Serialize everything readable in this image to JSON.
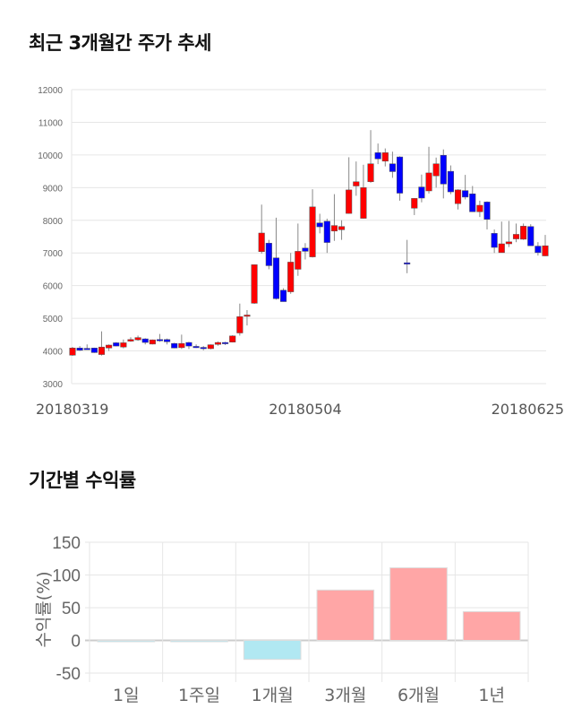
{
  "section1": {
    "title": "최근 3개월간 주가 추세"
  },
  "section2": {
    "title": "기간별 수익률"
  },
  "chart_data": [
    {
      "type": "candlestick",
      "title": "최근 3개월간 주가 추세",
      "ylim": [
        3000,
        12000
      ],
      "yticks": [
        3000,
        4000,
        5000,
        6000,
        7000,
        8000,
        9000,
        10000,
        11000,
        12000
      ],
      "xtick_labels": [
        {
          "index": 0,
          "label": "20180319"
        },
        {
          "index": 32,
          "label": "20180504"
        },
        {
          "index": 65,
          "label": "20180625"
        }
      ],
      "grid": true,
      "colors": {
        "up": "#ff0000",
        "down": "#0000ff"
      },
      "ohlc": [
        [
          3870,
          4120,
          3850,
          4090
        ],
        [
          4090,
          4150,
          4000,
          4020
        ],
        [
          4080,
          4200,
          4040,
          4060
        ],
        [
          4090,
          4100,
          3940,
          3950
        ],
        [
          3890,
          4600,
          3860,
          4120
        ],
        [
          4090,
          4200,
          4000,
          4180
        ],
        [
          4250,
          4270,
          4140,
          4150
        ],
        [
          4120,
          4350,
          4080,
          4250
        ],
        [
          4300,
          4420,
          4280,
          4350
        ],
        [
          4340,
          4470,
          4310,
          4410
        ],
        [
          4370,
          4390,
          4200,
          4260
        ],
        [
          4210,
          4350,
          4200,
          4340
        ],
        [
          4350,
          4520,
          4280,
          4340
        ],
        [
          4350,
          4380,
          4200,
          4280
        ],
        [
          4230,
          4250,
          4080,
          4090
        ],
        [
          4100,
          4500,
          4060,
          4230
        ],
        [
          4260,
          4280,
          4060,
          4150
        ],
        [
          4140,
          4200,
          4090,
          4100
        ],
        [
          4110,
          4150,
          4020,
          4080
        ],
        [
          4070,
          4200,
          4050,
          4190
        ],
        [
          4200,
          4290,
          4160,
          4260
        ],
        [
          4260,
          4280,
          4180,
          4230
        ],
        [
          4270,
          4480,
          4260,
          4460
        ],
        [
          4550,
          5450,
          4470,
          5050
        ],
        [
          5100,
          5250,
          4780,
          5100
        ],
        [
          5460,
          6650,
          5440,
          6640
        ],
        [
          7040,
          8480,
          6980,
          7610
        ],
        [
          7300,
          7400,
          6500,
          6610
        ],
        [
          6850,
          8080,
          5570,
          5600
        ],
        [
          5860,
          5920,
          5510,
          5510
        ],
        [
          5810,
          7000,
          5750,
          6720
        ],
        [
          6500,
          7900,
          6300,
          7050
        ],
        [
          7150,
          7300,
          6800,
          7050
        ],
        [
          6880,
          8950,
          6860,
          8410
        ],
        [
          7920,
          8200,
          7600,
          7800
        ],
        [
          7970,
          8050,
          7000,
          7320
        ],
        [
          7670,
          8800,
          7370,
          7840
        ],
        [
          7710,
          8000,
          7400,
          7810
        ],
        [
          8210,
          9930,
          8200,
          8930
        ],
        [
          9050,
          9800,
          8750,
          9180
        ],
        [
          8060,
          9700,
          8050,
          9000
        ],
        [
          9180,
          10760,
          9150,
          9730
        ],
        [
          10070,
          10350,
          9720,
          9880
        ],
        [
          9810,
          10200,
          9650,
          10070
        ],
        [
          9730,
          10100,
          9300,
          9490
        ],
        [
          9940,
          9960,
          8600,
          8830
        ],
        [
          6700,
          7400,
          6380,
          6690
        ],
        [
          8370,
          8680,
          8160,
          8670
        ],
        [
          9020,
          9400,
          8550,
          8680
        ],
        [
          8900,
          10250,
          8820,
          9450
        ],
        [
          9360,
          9920,
          9000,
          9730
        ],
        [
          9990,
          10170,
          8670,
          9110
        ],
        [
          9500,
          9680,
          8800,
          8870
        ],
        [
          8510,
          8950,
          8330,
          8930
        ],
        [
          8910,
          9390,
          8640,
          8710
        ],
        [
          8810,
          9050,
          8260,
          8260
        ],
        [
          8260,
          8600,
          8100,
          8460
        ],
        [
          8560,
          8580,
          7720,
          8030
        ],
        [
          7600,
          7720,
          7000,
          7170
        ],
        [
          7010,
          7960,
          7010,
          7280
        ],
        [
          7280,
          7980,
          7180,
          7340
        ],
        [
          7430,
          7900,
          7330,
          7570
        ],
        [
          7420,
          7900,
          7400,
          7820
        ],
        [
          7810,
          7880,
          7220,
          7220
        ],
        [
          7210,
          7330,
          6920,
          7010
        ],
        [
          6910,
          7550,
          6900,
          7220
        ]
      ]
    },
    {
      "type": "bar",
      "title": "기간별 수익률",
      "ylabel": "수익률(%)",
      "ylim": [
        -50,
        150
      ],
      "yticks": [
        -50,
        0,
        50,
        100,
        150
      ],
      "grid": true,
      "categories": [
        "1일",
        "1주일",
        "1개월",
        "3개월",
        "6개월",
        "1년"
      ],
      "values": [
        -1,
        -1.5,
        -29,
        77,
        111,
        44
      ],
      "colors": {
        "positive": "#ffa6a6",
        "negative": "#b1e8f2"
      }
    }
  ]
}
